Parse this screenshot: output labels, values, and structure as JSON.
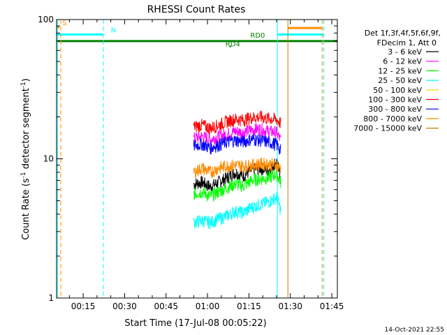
{
  "chart_data": {
    "type": "line",
    "title": "RHESSI Count Rates",
    "xlabel": "Start Time (17-Jul-08 00:05:22)",
    "ylabel_main": "Count Rate (s",
    "ylabel_sup1": "-1",
    "ylabel_mid": " detector segment",
    "ylabel_sup2": "-1",
    "ylabel_end": ")",
    "x_unit": "minutes after 00:00 UT, 17-Jul-08",
    "xlim": [
      5.37,
      107
    ],
    "ylim": [
      1,
      100
    ],
    "yscale": "log",
    "x_ticks": [
      {
        "value": 15,
        "label": "00:15"
      },
      {
        "value": 30,
        "label": "00:30"
      },
      {
        "value": 45,
        "label": "00:45"
      },
      {
        "value": 60,
        "label": "01:00"
      },
      {
        "value": 75,
        "label": "01:15"
      },
      {
        "value": 90,
        "label": "01:30"
      },
      {
        "value": 105,
        "label": "01:45"
      }
    ],
    "y_ticks": [
      {
        "value": 1,
        "label": "1"
      },
      {
        "value": 10,
        "label": "10"
      },
      {
        "value": 100,
        "label": "100"
      }
    ],
    "legend_header": [
      "Det 1f,3f,4f,5f,6f,9f,",
      "FDecim 1, Att 0"
    ],
    "legend_placement": "right",
    "series": [
      {
        "name": "3 - 6 keV",
        "color": "#000000",
        "x": [
          55,
          58,
          61,
          64,
          67,
          70,
          73,
          76,
          79,
          82,
          85,
          86.5
        ],
        "y": [
          6.6,
          6.8,
          6.3,
          6.8,
          7.3,
          8.0,
          7.6,
          8.3,
          8.6,
          8.3,
          9.6,
          7.2
        ]
      },
      {
        "name": "6 - 12 keV",
        "color": "#ff00ff",
        "x": [
          55,
          58,
          61,
          64,
          67,
          70,
          73,
          76,
          79,
          82,
          85,
          86.5
        ],
        "y": [
          14,
          14.5,
          13.8,
          14.5,
          15,
          15.8,
          15.5,
          16.2,
          16.4,
          15.8,
          15.5,
          13.5
        ]
      },
      {
        "name": "12 - 25 keV",
        "color": "#00ff00",
        "x": [
          55,
          58,
          61,
          64,
          67,
          70,
          73,
          76,
          79,
          82,
          85,
          86.5
        ],
        "y": [
          5.6,
          5.8,
          5.4,
          5.8,
          6.2,
          6.6,
          6.4,
          7.0,
          7.2,
          7.3,
          7.8,
          6.8
        ]
      },
      {
        "name": "25 - 50 keV",
        "color": "#00ffff",
        "x": [
          55,
          58,
          61,
          64,
          67,
          70,
          73,
          76,
          79,
          82,
          85,
          86.5
        ],
        "y": [
          3.5,
          3.6,
          3.5,
          3.7,
          3.9,
          4.2,
          4.1,
          4.5,
          4.7,
          4.9,
          5.3,
          4.3
        ]
      },
      {
        "name": "50 - 100 keV",
        "color": "#ffcc00",
        "x": [],
        "y": []
      },
      {
        "name": "100 - 300 keV",
        "color": "#ff0000",
        "x": [
          55,
          58,
          61,
          64,
          67,
          70,
          73,
          76,
          79,
          82,
          85,
          86.5
        ],
        "y": [
          17,
          17.5,
          16.6,
          17.5,
          18.5,
          19.3,
          19.0,
          19.8,
          20.0,
          19.5,
          19.2,
          18
        ]
      },
      {
        "name": "300 - 800 keV",
        "color": "#0000ff",
        "x": [
          55,
          58,
          61,
          64,
          67,
          70,
          73,
          76,
          79,
          82,
          85,
          86.5
        ],
        "y": [
          12.4,
          12.8,
          12.0,
          12.6,
          13.2,
          13.6,
          13.3,
          13.9,
          13.6,
          13.2,
          12.7,
          11.5
        ]
      },
      {
        "name": "800 - 7000 keV",
        "color": "#ff8c00",
        "x": [
          55,
          58,
          61,
          64,
          67,
          70,
          73,
          76,
          79,
          82,
          85,
          86.5
        ],
        "y": [
          8.0,
          8.6,
          8.0,
          8.6,
          8.9,
          9.0,
          8.9,
          9.0,
          9.2,
          9.2,
          9.0,
          8.5
        ]
      },
      {
        "name": "7000 - 15000 keV",
        "color": "#c08000",
        "x": [],
        "y": []
      }
    ],
    "vertical_lines": [
      {
        "x": 5.7,
        "color": "#00ffff",
        "style": "solid"
      },
      {
        "x": 6.9,
        "color": "#ff8c00",
        "style": "dashed"
      },
      {
        "x": 22.3,
        "color": "#00ffff",
        "style": "dashed"
      },
      {
        "x": 85.3,
        "color": "#00ffff",
        "style": "solid"
      },
      {
        "x": 89.1,
        "color": "#c08000",
        "style": "solid"
      },
      {
        "x": 101.5,
        "color": "#ff8c00",
        "style": "dashed"
      },
      {
        "x": 102.1,
        "color": "#00ffff",
        "style": "dashed"
      }
    ],
    "horizontal_bars": [
      {
        "x0": 5.37,
        "x1": 107,
        "y": 70,
        "color": "#008000",
        "width": 3
      },
      {
        "x0": 5.37,
        "x1": 22.3,
        "y": 78,
        "color": "#00ffff",
        "width": 3
      },
      {
        "x0": 85.3,
        "x1": 102.1,
        "y": 78,
        "color": "#00ffff",
        "width": 3
      },
      {
        "x0": 89.1,
        "x1": 101.5,
        "y": 87,
        "color": "#ff8c00",
        "width": 3
      },
      {
        "x0": 5.37,
        "x1": 6.4,
        "y": 88,
        "color": "#ff8c00",
        "width": 3
      }
    ],
    "annotations": [
      {
        "text": "S",
        "x": 7.4,
        "y": 88,
        "color": "#ff8c00"
      },
      {
        "text": "N",
        "x": 25.0,
        "y": 78,
        "color": "#00ffff"
      },
      {
        "text": "RD0",
        "x": 75.5,
        "y": 71.5,
        "color": "#008000"
      },
      {
        "text": "RD4",
        "x": 66.5,
        "y": 62,
        "color": "#008000"
      }
    ],
    "grid": false
  },
  "footer": {
    "timestamp": "14-Oct-2021 22:55"
  }
}
